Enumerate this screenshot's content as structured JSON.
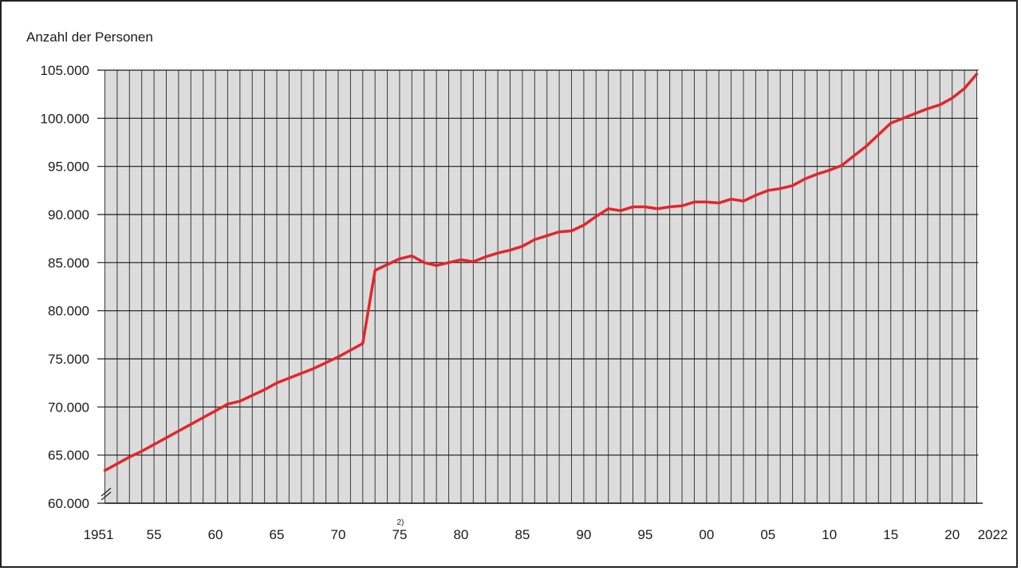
{
  "chart_data": {
    "type": "line",
    "ylabel": "Anzahl der Personen",
    "ylim": [
      60000,
      105000
    ],
    "y_ticks": [
      "60.000",
      "65.000",
      "70.000",
      "75.000",
      "80.000",
      "85.000",
      "90.000",
      "95.000",
      "100.000",
      "105.000"
    ],
    "y_tick_values": [
      60000,
      65000,
      70000,
      75000,
      80000,
      85000,
      90000,
      95000,
      100000,
      105000
    ],
    "x_range": [
      1951,
      2022
    ],
    "x_ticks": [
      {
        "year": 1951,
        "label": "1951"
      },
      {
        "year": 1955,
        "label": "55"
      },
      {
        "year": 1960,
        "label": "60"
      },
      {
        "year": 1965,
        "label": "65"
      },
      {
        "year": 1970,
        "label": "70"
      },
      {
        "year": 1975,
        "label": "75"
      },
      {
        "year": 1980,
        "label": "80"
      },
      {
        "year": 1985,
        "label": "85"
      },
      {
        "year": 1990,
        "label": "90"
      },
      {
        "year": 1995,
        "label": "95"
      },
      {
        "year": 2000,
        "label": "00"
      },
      {
        "year": 2005,
        "label": "05"
      },
      {
        "year": 2010,
        "label": "10"
      },
      {
        "year": 2015,
        "label": "15"
      },
      {
        "year": 2020,
        "label": "20"
      },
      {
        "year": 2022,
        "label": "2022"
      }
    ],
    "annotations": [
      {
        "year": 1975,
        "text": "2)"
      }
    ],
    "grid": true,
    "axis_break": true,
    "colors": {
      "line": "#e3262b",
      "plot_bg": "#dcdcdc",
      "grid": "#3a3a3a"
    },
    "series": [
      {
        "x": [
          1951,
          1952,
          1953,
          1954,
          1955,
          1956,
          1957,
          1958,
          1959,
          1960,
          1961,
          1962,
          1963,
          1964,
          1965,
          1966,
          1967,
          1968,
          1969,
          1970,
          1971,
          1972,
          1973,
          1974,
          1975,
          1976,
          1977,
          1978,
          1979,
          1980,
          1981,
          1982,
          1983,
          1984,
          1985,
          1986,
          1987,
          1988,
          1989,
          1990,
          1991,
          1992,
          1993,
          1994,
          1995,
          1996,
          1997,
          1998,
          1999,
          2000,
          2001,
          2002,
          2003,
          2004,
          2005,
          2006,
          2007,
          2008,
          2009,
          2010,
          2011,
          2012,
          2013,
          2014,
          2015,
          2016,
          2017,
          2018,
          2019,
          2020,
          2021,
          2022
        ],
        "values": [
          63400,
          64100,
          64800,
          65400,
          66100,
          66800,
          67500,
          68200,
          68900,
          69600,
          70300,
          70600,
          71200,
          71800,
          72500,
          73000,
          73500,
          74000,
          74600,
          75200,
          75900,
          76600,
          84200,
          84800,
          85400,
          85700,
          85000,
          84700,
          85000,
          85300,
          85100,
          85600,
          86000,
          86300,
          86700,
          87400,
          87800,
          88200,
          88300,
          88900,
          89800,
          90600,
          90400,
          90800,
          90800,
          90600,
          90800,
          90900,
          91300,
          91300,
          91200,
          91600,
          91400,
          92000,
          92500,
          92700,
          93000,
          93700,
          94200,
          94600,
          95100,
          96100,
          97100,
          98300,
          99500,
          100000,
          100500,
          101000,
          101400,
          102100,
          103100,
          104600
        ]
      }
    ]
  }
}
